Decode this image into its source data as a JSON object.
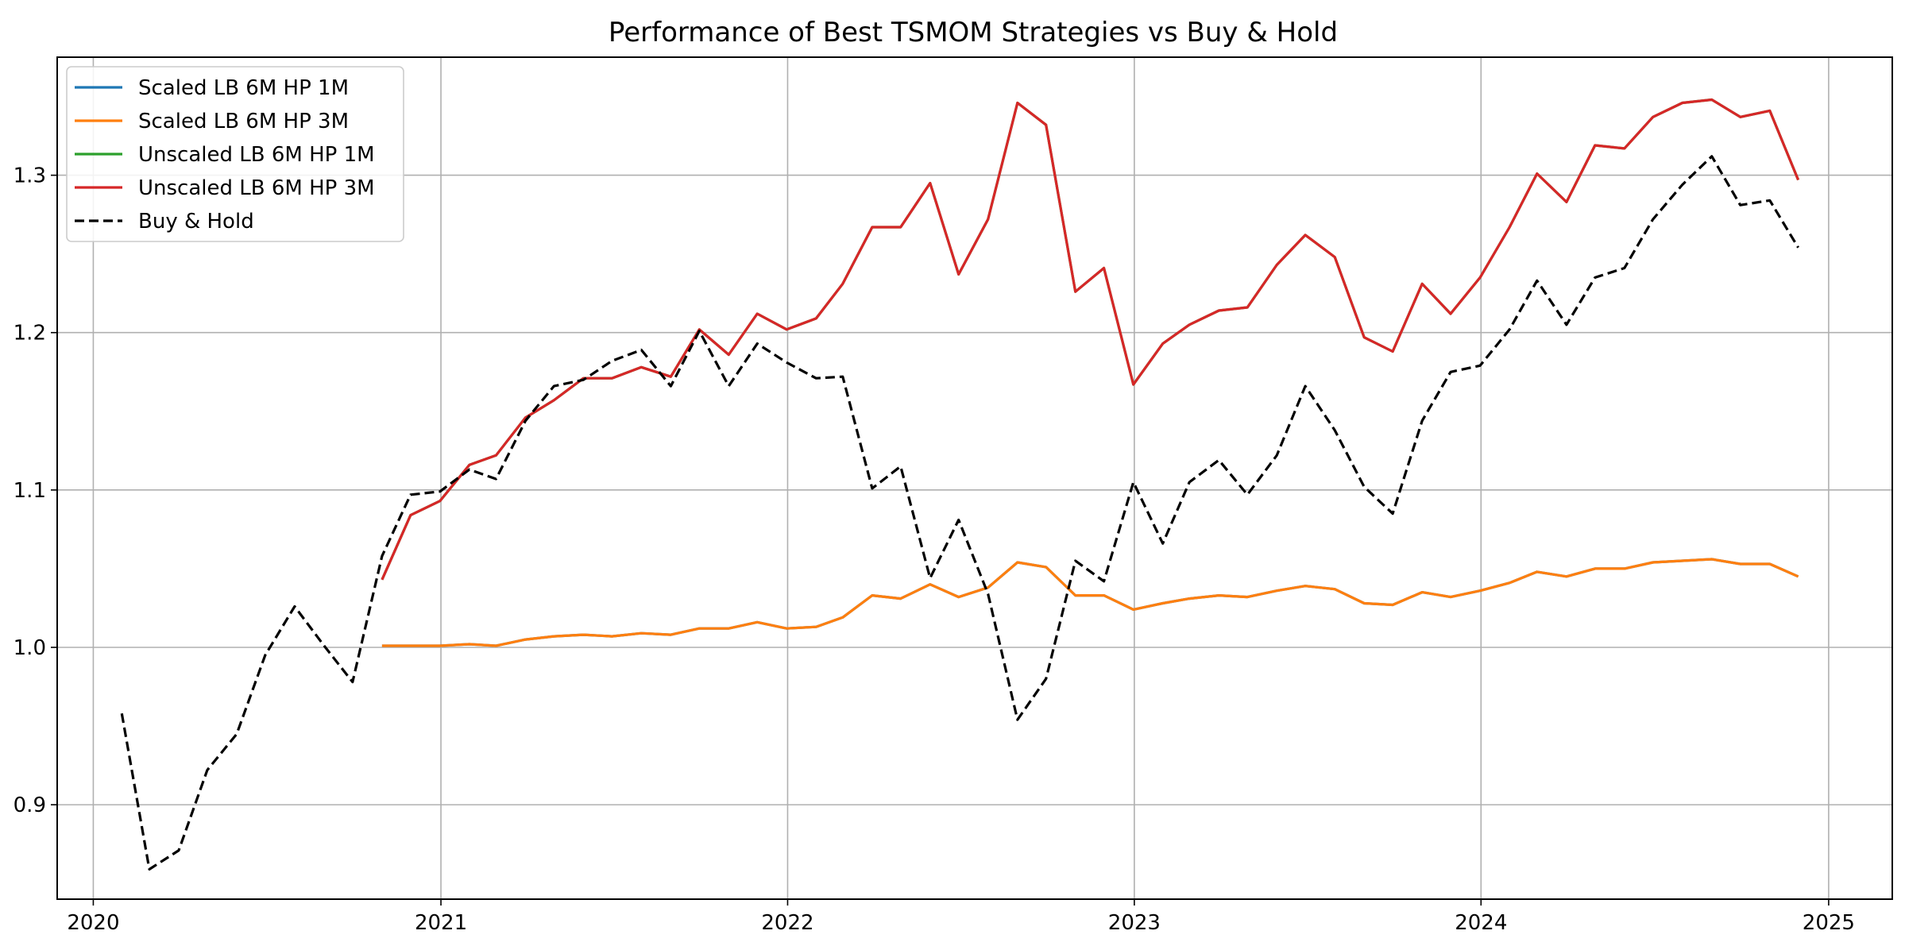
{
  "chart_data": {
    "type": "line",
    "title": "Performance of Best TSMOM Strategies vs Buy & Hold",
    "xlabel": "",
    "ylabel": "",
    "x_range": [
      "2019-11-24",
      "2025-03-09"
    ],
    "ylim": [
      0.84,
      1.375
    ],
    "x_ticks": [
      {
        "date": "2020-01-01",
        "label": "2020"
      },
      {
        "date": "2021-01-01",
        "label": "2021"
      },
      {
        "date": "2022-01-01",
        "label": "2022"
      },
      {
        "date": "2023-01-01",
        "label": "2023"
      },
      {
        "date": "2024-01-01",
        "label": "2024"
      },
      {
        "date": "2025-01-01",
        "label": "2025"
      }
    ],
    "y_ticks": [
      {
        "value": 0.9,
        "label": "0.9"
      },
      {
        "value": 1.0,
        "label": "1.0"
      },
      {
        "value": 1.1,
        "label": "1.1"
      },
      {
        "value": 1.2,
        "label": "1.2"
      },
      {
        "value": 1.3,
        "label": "1.3"
      }
    ],
    "grid": true,
    "legend_position": "top-left",
    "x": [
      "2020-01-31",
      "2020-02-29",
      "2020-03-31",
      "2020-04-30",
      "2020-05-31",
      "2020-06-30",
      "2020-07-31",
      "2020-08-31",
      "2020-09-30",
      "2020-10-31",
      "2020-11-30",
      "2020-12-31",
      "2021-01-31",
      "2021-02-28",
      "2021-03-31",
      "2021-04-30",
      "2021-05-31",
      "2021-06-30",
      "2021-07-31",
      "2021-08-31",
      "2021-09-30",
      "2021-10-31",
      "2021-11-30",
      "2021-12-31",
      "2022-01-31",
      "2022-02-28",
      "2022-03-31",
      "2022-04-30",
      "2022-05-31",
      "2022-06-30",
      "2022-07-31",
      "2022-08-31",
      "2022-09-30",
      "2022-10-31",
      "2022-11-30",
      "2022-12-31",
      "2023-01-31",
      "2023-02-28",
      "2023-03-31",
      "2023-04-30",
      "2023-05-31",
      "2023-06-30",
      "2023-07-31",
      "2023-08-31",
      "2023-09-30",
      "2023-10-31",
      "2023-11-30",
      "2023-12-31",
      "2024-01-31",
      "2024-02-29",
      "2024-03-31",
      "2024-04-30",
      "2024-05-31",
      "2024-06-30",
      "2024-07-31",
      "2024-08-31",
      "2024-09-30",
      "2024-10-31",
      "2024-11-30"
    ],
    "series": [
      {
        "name": "Scaled LB 6M HP 1M",
        "color": "#1f77b4",
        "dash": "solid",
        "values": [
          null,
          null,
          null,
          null,
          null,
          null,
          null,
          null,
          null,
          1.001,
          1.001,
          1.001,
          1.002,
          1.001,
          1.005,
          1.007,
          1.008,
          1.007,
          1.009,
          1.008,
          1.012,
          1.012,
          1.016,
          1.012,
          1.013,
          1.019,
          1.033,
          1.031,
          1.04,
          1.032,
          1.038,
          1.054,
          1.051,
          1.033,
          1.033,
          1.024,
          1.028,
          1.031,
          1.033,
          1.032,
          1.036,
          1.039,
          1.037,
          1.028,
          1.027,
          1.035,
          1.032,
          1.036,
          1.041,
          1.048,
          1.045,
          1.05,
          1.05,
          1.054,
          1.055,
          1.056,
          1.053,
          1.053,
          1.045
        ]
      },
      {
        "name": "Scaled LB 6M HP 3M",
        "color": "#ff7f0e",
        "dash": "solid",
        "values": [
          null,
          null,
          null,
          null,
          null,
          null,
          null,
          null,
          null,
          1.001,
          1.001,
          1.001,
          1.002,
          1.001,
          1.005,
          1.007,
          1.008,
          1.007,
          1.009,
          1.008,
          1.012,
          1.012,
          1.016,
          1.012,
          1.013,
          1.019,
          1.033,
          1.031,
          1.04,
          1.032,
          1.038,
          1.054,
          1.051,
          1.033,
          1.033,
          1.024,
          1.028,
          1.031,
          1.033,
          1.032,
          1.036,
          1.039,
          1.037,
          1.028,
          1.027,
          1.035,
          1.032,
          1.036,
          1.041,
          1.048,
          1.045,
          1.05,
          1.05,
          1.054,
          1.055,
          1.056,
          1.053,
          1.053,
          1.045
        ]
      },
      {
        "name": "Unscaled LB 6M HP 1M",
        "color": "#2ca02c",
        "dash": "solid",
        "values": [
          null,
          null,
          null,
          null,
          null,
          null,
          null,
          null,
          null,
          1.043,
          1.084,
          1.093,
          1.116,
          1.122,
          1.146,
          1.157,
          1.171,
          1.171,
          1.178,
          1.172,
          1.202,
          1.186,
          1.212,
          1.202,
          1.209,
          1.231,
          1.267,
          1.267,
          1.295,
          1.237,
          1.272,
          1.346,
          1.332,
          1.226,
          1.241,
          1.167,
          1.193,
          1.205,
          1.214,
          1.216,
          1.243,
          1.262,
          1.248,
          1.197,
          1.188,
          1.231,
          1.212,
          1.235,
          1.267,
          1.301,
          1.283,
          1.319,
          1.317,
          1.337,
          1.346,
          1.348,
          1.337,
          1.341,
          1.297
        ]
      },
      {
        "name": "Unscaled LB 6M HP 3M",
        "color": "#d62728",
        "dash": "solid",
        "values": [
          null,
          null,
          null,
          null,
          null,
          null,
          null,
          null,
          null,
          1.043,
          1.084,
          1.093,
          1.116,
          1.122,
          1.146,
          1.157,
          1.171,
          1.171,
          1.178,
          1.172,
          1.202,
          1.186,
          1.212,
          1.202,
          1.209,
          1.231,
          1.267,
          1.267,
          1.295,
          1.237,
          1.272,
          1.346,
          1.332,
          1.226,
          1.241,
          1.167,
          1.193,
          1.205,
          1.214,
          1.216,
          1.243,
          1.262,
          1.248,
          1.197,
          1.188,
          1.231,
          1.212,
          1.235,
          1.267,
          1.301,
          1.283,
          1.319,
          1.317,
          1.337,
          1.346,
          1.348,
          1.337,
          1.341,
          1.297
        ]
      },
      {
        "name": "Buy & Hold",
        "color": "#000000",
        "dash": "dashed",
        "values": [
          0.958,
          0.859,
          0.871,
          0.922,
          0.945,
          0.995,
          1.026,
          1.001,
          0.978,
          1.058,
          1.097,
          1.099,
          1.113,
          1.107,
          1.144,
          1.166,
          1.17,
          1.182,
          1.189,
          1.166,
          1.201,
          1.166,
          1.193,
          1.181,
          1.171,
          1.172,
          1.101,
          1.115,
          1.044,
          1.081,
          1.034,
          0.954,
          0.98,
          1.055,
          1.042,
          1.105,
          1.066,
          1.105,
          1.119,
          1.097,
          1.122,
          1.166,
          1.138,
          1.102,
          1.085,
          1.144,
          1.175,
          1.179,
          1.202,
          1.233,
          1.205,
          1.235,
          1.241,
          1.272,
          1.294,
          1.312,
          1.281,
          1.284,
          1.254
        ]
      }
    ]
  }
}
